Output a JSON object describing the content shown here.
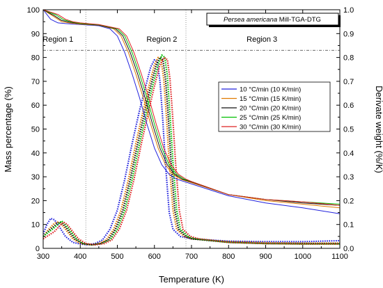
{
  "chart_data": {
    "type": "line",
    "title_italic": "Persea americana",
    "title_rest": " Mill-TGA-DTG",
    "xlabel": "Temperature (K)",
    "ylabel": "Mass percentage (%)",
    "y2label": "Derivate weight (%/K)",
    "xlim": [
      300,
      1100
    ],
    "ylim": [
      0,
      100
    ],
    "y2lim": [
      0.0,
      1.0
    ],
    "x_ticks": [
      300,
      400,
      500,
      600,
      700,
      800,
      900,
      1000,
      1100
    ],
    "y_ticks": [
      0,
      10,
      20,
      30,
      40,
      50,
      60,
      70,
      80,
      90,
      100
    ],
    "y2_ticks": [
      "0.0",
      "0.1",
      "0.2",
      "0.3",
      "0.4",
      "0.5",
      "0.6",
      "0.7",
      "0.8",
      "0.9",
      "1.0"
    ],
    "regions": [
      {
        "label": "Region 1",
        "x": 340
      },
      {
        "label": "Region 2",
        "x": 620
      },
      {
        "label": "Region 3",
        "x": 890
      }
    ],
    "region_dividers_x": [
      415,
      685
    ],
    "region_line_y": 83,
    "legend_position": "center-right",
    "series": [
      {
        "name": "10 °C/min (10 K/min)",
        "color": "#2222dd",
        "tga": [
          [
            300,
            100
          ],
          [
            320,
            96
          ],
          [
            340,
            94.5
          ],
          [
            360,
            94.2
          ],
          [
            400,
            93.8
          ],
          [
            450,
            93.3
          ],
          [
            480,
            92
          ],
          [
            500,
            89
          ],
          [
            520,
            82
          ],
          [
            540,
            73
          ],
          [
            560,
            63
          ],
          [
            580,
            52
          ],
          [
            600,
            42
          ],
          [
            620,
            35
          ],
          [
            640,
            31
          ],
          [
            660,
            29
          ],
          [
            700,
            27
          ],
          [
            800,
            22
          ],
          [
            900,
            19
          ],
          [
            1000,
            17
          ],
          [
            1100,
            14.5
          ]
        ],
        "dtg": [
          [
            300,
            0.06
          ],
          [
            310,
            0.1
          ],
          [
            320,
            0.125
          ],
          [
            330,
            0.12
          ],
          [
            340,
            0.1
          ],
          [
            350,
            0.075
          ],
          [
            360,
            0.05
          ],
          [
            380,
            0.025
          ],
          [
            400,
            0.018
          ],
          [
            420,
            0.015
          ],
          [
            440,
            0.02
          ],
          [
            460,
            0.035
          ],
          [
            480,
            0.08
          ],
          [
            500,
            0.16
          ],
          [
            520,
            0.29
          ],
          [
            540,
            0.44
          ],
          [
            560,
            0.58
          ],
          [
            575,
            0.67
          ],
          [
            590,
            0.76
          ],
          [
            600,
            0.79
          ],
          [
            608,
            0.78
          ],
          [
            615,
            0.7
          ],
          [
            622,
            0.55
          ],
          [
            630,
            0.35
          ],
          [
            640,
            0.15
          ],
          [
            650,
            0.08
          ],
          [
            670,
            0.05
          ],
          [
            700,
            0.04
          ],
          [
            800,
            0.03
          ],
          [
            900,
            0.028
          ],
          [
            1000,
            0.028
          ],
          [
            1100,
            0.032
          ]
        ]
      },
      {
        "name": "15 °C/min (15 K/min)",
        "color": "#e07a00",
        "tga": [
          [
            300,
            100
          ],
          [
            330,
            97
          ],
          [
            350,
            95
          ],
          [
            370,
            94.5
          ],
          [
            400,
            94
          ],
          [
            450,
            93.5
          ],
          [
            490,
            92
          ],
          [
            510,
            89
          ],
          [
            530,
            82
          ],
          [
            550,
            73
          ],
          [
            570,
            63
          ],
          [
            590,
            52
          ],
          [
            610,
            42
          ],
          [
            630,
            35
          ],
          [
            650,
            31
          ],
          [
            670,
            29
          ],
          [
            700,
            27.5
          ],
          [
            800,
            22.5
          ],
          [
            900,
            20
          ],
          [
            1000,
            18.5
          ],
          [
            1100,
            17
          ]
        ],
        "dtg": [
          [
            300,
            0.05
          ],
          [
            315,
            0.08
          ],
          [
            330,
            0.105
          ],
          [
            340,
            0.11
          ],
          [
            350,
            0.1
          ],
          [
            360,
            0.08
          ],
          [
            380,
            0.04
          ],
          [
            400,
            0.02
          ],
          [
            430,
            0.015
          ],
          [
            450,
            0.02
          ],
          [
            470,
            0.035
          ],
          [
            490,
            0.08
          ],
          [
            510,
            0.16
          ],
          [
            530,
            0.29
          ],
          [
            550,
            0.44
          ],
          [
            570,
            0.58
          ],
          [
            585,
            0.68
          ],
          [
            600,
            0.77
          ],
          [
            610,
            0.8
          ],
          [
            618,
            0.79
          ],
          [
            625,
            0.71
          ],
          [
            632,
            0.56
          ],
          [
            640,
            0.36
          ],
          [
            650,
            0.16
          ],
          [
            660,
            0.08
          ],
          [
            680,
            0.05
          ],
          [
            700,
            0.04
          ],
          [
            800,
            0.028
          ],
          [
            900,
            0.024
          ],
          [
            1000,
            0.022
          ],
          [
            1100,
            0.022
          ]
        ]
      },
      {
        "name": "20 °C/min (20 K/min)",
        "color": "#111111",
        "tga": [
          [
            300,
            100
          ],
          [
            330,
            97.5
          ],
          [
            350,
            95.5
          ],
          [
            370,
            94.8
          ],
          [
            400,
            94.2
          ],
          [
            450,
            93.6
          ],
          [
            495,
            92
          ],
          [
            515,
            89
          ],
          [
            535,
            82
          ],
          [
            555,
            73
          ],
          [
            575,
            63
          ],
          [
            595,
            52
          ],
          [
            615,
            42
          ],
          [
            635,
            35
          ],
          [
            655,
            31
          ],
          [
            675,
            29
          ],
          [
            700,
            27.8
          ],
          [
            800,
            22.5
          ],
          [
            900,
            20.5
          ],
          [
            1000,
            19
          ],
          [
            1100,
            18
          ]
        ],
        "dtg": [
          [
            300,
            0.05
          ],
          [
            320,
            0.08
          ],
          [
            335,
            0.1
          ],
          [
            345,
            0.11
          ],
          [
            355,
            0.1
          ],
          [
            365,
            0.08
          ],
          [
            385,
            0.04
          ],
          [
            405,
            0.02
          ],
          [
            430,
            0.015
          ],
          [
            455,
            0.02
          ],
          [
            475,
            0.035
          ],
          [
            495,
            0.08
          ],
          [
            515,
            0.16
          ],
          [
            535,
            0.29
          ],
          [
            555,
            0.44
          ],
          [
            575,
            0.58
          ],
          [
            590,
            0.68
          ],
          [
            605,
            0.77
          ],
          [
            615,
            0.8
          ],
          [
            623,
            0.79
          ],
          [
            630,
            0.71
          ],
          [
            637,
            0.56
          ],
          [
            645,
            0.36
          ],
          [
            655,
            0.16
          ],
          [
            665,
            0.08
          ],
          [
            685,
            0.05
          ],
          [
            700,
            0.04
          ],
          [
            800,
            0.025
          ],
          [
            900,
            0.02
          ],
          [
            1000,
            0.02
          ],
          [
            1100,
            0.02
          ]
        ]
      },
      {
        "name": "25 °C/min (25 K/min)",
        "color": "#00c000",
        "tga": [
          [
            300,
            100
          ],
          [
            335,
            97.8
          ],
          [
            355,
            95.8
          ],
          [
            375,
            95
          ],
          [
            400,
            94.3
          ],
          [
            450,
            93.7
          ],
          [
            500,
            92
          ],
          [
            520,
            89
          ],
          [
            540,
            82
          ],
          [
            560,
            73
          ],
          [
            580,
            63
          ],
          [
            600,
            52
          ],
          [
            620,
            42
          ],
          [
            640,
            35
          ],
          [
            660,
            31
          ],
          [
            680,
            29
          ],
          [
            700,
            28
          ],
          [
            800,
            22.5
          ],
          [
            900,
            20.5
          ],
          [
            1000,
            19.5
          ],
          [
            1100,
            18.5
          ]
        ],
        "dtg": [
          [
            300,
            0.05
          ],
          [
            325,
            0.08
          ],
          [
            340,
            0.1
          ],
          [
            350,
            0.115
          ],
          [
            360,
            0.1
          ],
          [
            370,
            0.08
          ],
          [
            390,
            0.04
          ],
          [
            410,
            0.02
          ],
          [
            435,
            0.015
          ],
          [
            460,
            0.02
          ],
          [
            480,
            0.035
          ],
          [
            500,
            0.08
          ],
          [
            520,
            0.16
          ],
          [
            540,
            0.29
          ],
          [
            560,
            0.44
          ],
          [
            580,
            0.58
          ],
          [
            595,
            0.68
          ],
          [
            610,
            0.77
          ],
          [
            620,
            0.81
          ],
          [
            628,
            0.8
          ],
          [
            635,
            0.72
          ],
          [
            642,
            0.56
          ],
          [
            650,
            0.36
          ],
          [
            660,
            0.16
          ],
          [
            670,
            0.08
          ],
          [
            690,
            0.05
          ],
          [
            710,
            0.04
          ],
          [
            800,
            0.025
          ],
          [
            900,
            0.02
          ],
          [
            1000,
            0.018
          ],
          [
            1100,
            0.018
          ]
        ]
      },
      {
        "name": "30 °C/min (30 K/min)",
        "color": "#dd2222",
        "tga": [
          [
            300,
            100
          ],
          [
            340,
            98
          ],
          [
            360,
            96
          ],
          [
            380,
            95
          ],
          [
            400,
            94.5
          ],
          [
            450,
            93.8
          ],
          [
            505,
            92
          ],
          [
            525,
            89
          ],
          [
            545,
            82
          ],
          [
            565,
            73
          ],
          [
            585,
            63
          ],
          [
            605,
            52
          ],
          [
            625,
            42
          ],
          [
            645,
            35
          ],
          [
            665,
            31
          ],
          [
            685,
            29
          ],
          [
            700,
            28
          ],
          [
            800,
            22.5
          ],
          [
            900,
            20.5
          ],
          [
            1000,
            19.5
          ],
          [
            1100,
            18
          ]
        ],
        "dtg": [
          [
            300,
            0.04
          ],
          [
            330,
            0.07
          ],
          [
            345,
            0.095
          ],
          [
            355,
            0.11
          ],
          [
            365,
            0.1
          ],
          [
            375,
            0.08
          ],
          [
            395,
            0.04
          ],
          [
            415,
            0.02
          ],
          [
            440,
            0.015
          ],
          [
            465,
            0.02
          ],
          [
            485,
            0.035
          ],
          [
            505,
            0.08
          ],
          [
            525,
            0.16
          ],
          [
            545,
            0.29
          ],
          [
            565,
            0.44
          ],
          [
            585,
            0.58
          ],
          [
            600,
            0.68
          ],
          [
            615,
            0.77
          ],
          [
            627,
            0.8
          ],
          [
            635,
            0.79
          ],
          [
            642,
            0.71
          ],
          [
            649,
            0.56
          ],
          [
            657,
            0.36
          ],
          [
            667,
            0.16
          ],
          [
            677,
            0.08
          ],
          [
            697,
            0.05
          ],
          [
            720,
            0.04
          ],
          [
            800,
            0.025
          ],
          [
            900,
            0.02
          ],
          [
            1000,
            0.018
          ],
          [
            1100,
            0.018
          ]
        ]
      }
    ]
  }
}
